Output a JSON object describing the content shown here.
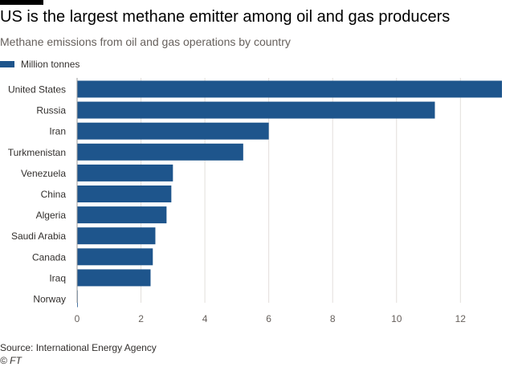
{
  "chart_data": {
    "type": "bar",
    "orientation": "horizontal",
    "title": "US is the largest methane emitter among oil and gas producers",
    "subtitle": "Methane emissions from oil and gas operations by country",
    "legend": [
      "Million tonnes"
    ],
    "categories": [
      "United States",
      "Russia",
      "Iran",
      "Turkmenistan",
      "Venezuela",
      "China",
      "Algeria",
      "Saudi Arabia",
      "Canada",
      "Iraq",
      "Norway"
    ],
    "values": [
      13.3,
      11.2,
      6.0,
      5.2,
      3.0,
      2.95,
      2.8,
      2.45,
      2.37,
      2.3,
      0.02
    ],
    "xticks": [
      0,
      2,
      4,
      6,
      8,
      10,
      12
    ],
    "xlim": [
      0,
      13.3
    ],
    "grid": true,
    "bar_color": "#1e558c",
    "grid_color": "#e2dedb",
    "axis_color": "#999999"
  },
  "footer": {
    "source": "Source: International Energy Agency",
    "credit": "© FT"
  }
}
